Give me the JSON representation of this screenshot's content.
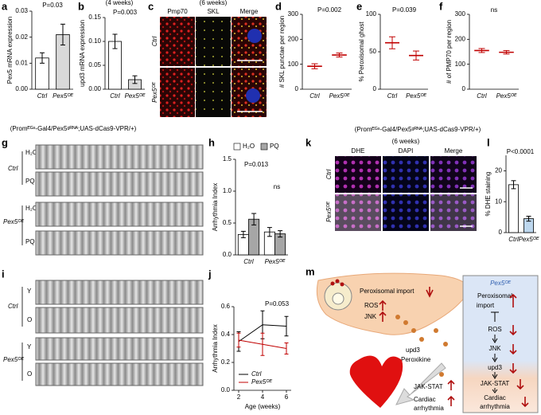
{
  "chart_data": [
    {
      "type": "bar",
      "panel": "a",
      "ylabel": "Pex5 mRNA expression",
      "categories": [
        "Ctrl",
        "Pex5ᴼᴱ"
      ],
      "values": [
        0.012,
        0.021
      ],
      "errors": [
        0.002,
        0.004
      ],
      "colors": [
        "#ffffff",
        "#d9d9d9"
      ],
      "ylim": [
        0,
        0.03
      ],
      "yticks": [
        {
          "value": 0,
          "label": "0.00"
        },
        {
          "value": 0.01,
          "label": "0.01"
        },
        {
          "value": 0.02,
          "label": "0.02"
        },
        {
          "value": 0.03,
          "label": "0.03"
        }
      ],
      "annotations": [
        "P=0.03"
      ]
    },
    {
      "type": "bar",
      "panel": "b",
      "subtitle": "(4 weeks)",
      "ylabel": "upd3 mRNA expression",
      "categories": [
        "Ctrl",
        "Pex5ᴼᴱ"
      ],
      "values": [
        0.1,
        0.02
      ],
      "errors": [
        0.015,
        0.008
      ],
      "colors": [
        "#ffffff",
        "#d9d9d9"
      ],
      "ylim": [
        0,
        0.15
      ],
      "yticks": [
        {
          "value": 0,
          "label": "0.00"
        },
        {
          "value": 0.05,
          "label": "0.05"
        },
        {
          "value": 0.1,
          "label": "0.10"
        },
        {
          "value": 0.15,
          "label": "0.15"
        }
      ],
      "annotations": [
        "P=0.003"
      ]
    },
    {
      "type": "dot",
      "panel": "d",
      "ylabel": "# SKL punctae per region",
      "categories": [
        "Ctrl",
        "Pex5ᴼᴱ"
      ],
      "values": [
        92,
        137
      ],
      "errors": [
        10,
        8
      ],
      "color": "#c00000",
      "ylim": [
        0,
        300
      ],
      "yticks": [
        0,
        100,
        200,
        300
      ],
      "annotations": [
        "P=0.002"
      ]
    },
    {
      "type": "dot",
      "panel": "e",
      "ylabel": "% Peroxisomal ghost",
      "categories": [
        "Ctrl",
        "Pex5ᴼᴱ"
      ],
      "values": [
        62,
        45
      ],
      "errors": [
        8,
        6
      ],
      "color": "#c00000",
      "ylim": [
        0,
        100
      ],
      "yticks": [
        0,
        50,
        100
      ],
      "annotations": [
        "P=0.039"
      ]
    },
    {
      "type": "dot",
      "panel": "f",
      "ylabel": "# of PMP70 per region",
      "categories": [
        "Ctrl",
        "Pex5ᴼᴱ"
      ],
      "values": [
        155,
        148
      ],
      "errors": [
        8,
        7
      ],
      "color": "#c00000",
      "ylim": [
        0,
        300
      ],
      "yticks": [
        0,
        100,
        200,
        300
      ],
      "annotations": [
        "ns"
      ]
    },
    {
      "type": "grouped_bar",
      "panel": "h",
      "ylabel": "Arrhythmia Index",
      "categories": [
        "Ctrl",
        "Pex5ᴼᴱ"
      ],
      "series": [
        {
          "name": "H₂O",
          "color": "#ffffff",
          "values": [
            0.32,
            0.36
          ],
          "errors": [
            0.05,
            0.07
          ]
        },
        {
          "name": "PQ",
          "color": "#a6a6a6",
          "values": [
            0.56,
            0.33
          ],
          "errors": [
            0.09,
            0.05
          ]
        }
      ],
      "ylim": [
        0,
        1.5
      ],
      "yticks": [
        {
          "value": 0,
          "label": "0.0"
        },
        {
          "value": 0.5,
          "label": "0.5"
        },
        {
          "value": 1,
          "label": "1.0"
        },
        {
          "value": 1.5,
          "label": "1.5"
        }
      ],
      "annotations": [
        "P=0.013",
        "ns"
      ]
    },
    {
      "type": "line",
      "panel": "j",
      "ylabel": "Arrhythmia Index",
      "xlabel": "Age (weeks)",
      "x": [
        2,
        4,
        6
      ],
      "xlim": [
        1.6,
        6.4
      ],
      "xticks": [
        2,
        4,
        6
      ],
      "series": [
        {
          "name": "Ctrl",
          "color": "#000000",
          "values": [
            0.35,
            0.47,
            0.46
          ],
          "errors": [
            0.07,
            0.1,
            0.07
          ]
        },
        {
          "name": "Pex5ᴼᴱ",
          "color": "#c00000",
          "values": [
            0.36,
            0.33,
            0.3
          ],
          "errors": [
            0.05,
            0.08,
            0.04
          ]
        }
      ],
      "ylim": [
        0,
        0.6
      ],
      "yticks": [
        {
          "value": 0,
          "label": "0.0"
        },
        {
          "value": 0.2,
          "label": "0.2"
        },
        {
          "value": 0.4,
          "label": "0.4"
        },
        {
          "value": 0.6,
          "label": "0.6"
        }
      ],
      "annotations": [
        "P=0.053"
      ]
    },
    {
      "type": "bar",
      "panel": "l",
      "ylabel": "% DHE staining",
      "categories": [
        "Ctrl",
        "Pex5ᴼᴱ"
      ],
      "values": [
        15.5,
        4.5
      ],
      "errors": [
        1.3,
        0.8
      ],
      "colors": [
        "#ffffff",
        "#bdd7ee"
      ],
      "ylim": [
        0,
        25
      ],
      "yticks": [
        0,
        10,
        20
      ],
      "annotations": [
        "P<0.0001"
      ]
    }
  ],
  "captions": [
    "(Promᴱᴳˢ-Gal4/Pex5ᵍᴿᴺᴬ;UAS-dCas9-VPR/+)",
    "(Promᴱᴳˢ-Gal4/Pex5ᵍᴿᴺᴬ;UAS-dCas9-VPR/+)"
  ],
  "panel_c": {
    "label": "c",
    "subtitle": "(6 weeks)",
    "columns": [
      "Pmp70",
      "SKL",
      "Merge"
    ],
    "rows": [
      "Ctrl",
      "Pex5ᴼᴱ"
    ]
  },
  "panel_k": {
    "label": "k",
    "subtitle": "(6 weeks)",
    "columns": [
      "DHE",
      "DAPI",
      "Merge"
    ],
    "rows": [
      "Ctrl",
      "Pex5ᴼᴱ"
    ]
  },
  "panel_g": {
    "label": "g",
    "groups": [
      "Ctrl",
      "Pex5ᴼᴱ"
    ],
    "rows": [
      "H₂O",
      "PQ",
      "H₂O",
      "PQ"
    ]
  },
  "panel_i": {
    "label": "i",
    "groups": [
      "Ctrl",
      "Pex5ᴼᴱ"
    ],
    "rows": [
      "Y",
      "O",
      "Y",
      "O"
    ]
  },
  "panel_m": {
    "label": "m",
    "liver": [
      "Peroxisomal import",
      "ROS",
      "JNK"
    ],
    "signal": [
      "upd3",
      "Peroxikine"
    ],
    "heart": [
      "JAK-STAT",
      "Cardiac",
      "arrhythmia"
    ],
    "box": {
      "title": "Pex5ᴼᴱ",
      "steps": [
        "Peroxisomal",
        "import",
        "ROS",
        "JNK",
        "upd3",
        "JAK-STAT",
        "Cardiac",
        "arrhythmia"
      ]
    }
  }
}
